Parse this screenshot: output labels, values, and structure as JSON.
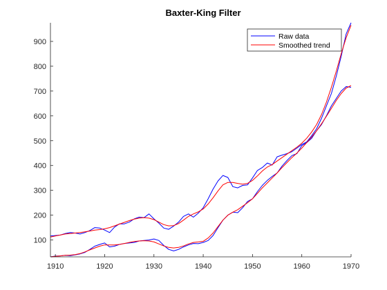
{
  "chart_data": {
    "type": "line",
    "title": "Baxter-King  Filter",
    "xlabel": "",
    "ylabel": "",
    "xlim": [
      1909,
      1970
    ],
    "ylim": [
      32,
      975
    ],
    "xticks": [
      1910,
      1920,
      1930,
      1940,
      1950,
      1960,
      1970
    ],
    "yticks": [
      100,
      200,
      300,
      400,
      500,
      600,
      700,
      800,
      900
    ],
    "grid": false,
    "legend_position": "top-right",
    "x": [
      1909,
      1910,
      1911,
      1912,
      1913,
      1914,
      1915,
      1916,
      1917,
      1918,
      1919,
      1920,
      1921,
      1922,
      1923,
      1924,
      1925,
      1926,
      1927,
      1928,
      1929,
      1930,
      1931,
      1932,
      1933,
      1934,
      1935,
      1936,
      1937,
      1938,
      1939,
      1940,
      1941,
      1942,
      1943,
      1944,
      1945,
      1946,
      1947,
      1948,
      1949,
      1950,
      1951,
      1952,
      1953,
      1954,
      1955,
      1956,
      1957,
      1958,
      1959,
      1960,
      1961,
      1962,
      1963,
      1964,
      1965,
      1966,
      1967,
      1968,
      1969,
      1970
    ],
    "series": [
      {
        "name": "Raw data",
        "color": "#0000ff",
        "values": [
          116,
          118,
          120,
          126,
          130,
          128,
          124,
          130,
          138,
          150,
          148,
          140,
          130,
          152,
          165,
          165,
          172,
          185,
          192,
          190,
          205,
          185,
          168,
          148,
          143,
          156,
          172,
          195,
          205,
          192,
          208,
          230,
          266,
          305,
          338,
          360,
          352,
          315,
          310,
          320,
          322,
          350,
          380,
          392,
          410,
          402,
          435,
          442,
          448,
          456,
          470,
          485,
          495,
          520,
          548,
          590,
          640,
          690,
          760,
          840,
          930,
          975
        ]
      },
      {
        "name": "Raw data",
        "color": "#0000ff",
        "values": [
          32,
          35,
          36,
          38,
          37,
          40,
          44,
          50,
          62,
          75,
          82,
          88,
          72,
          75,
          82,
          86,
          88,
          90,
          96,
          98,
          100,
          104,
          98,
          78,
          62,
          56,
          62,
          72,
          80,
          86,
          85,
          90,
          98,
          118,
          150,
          180,
          200,
          212,
          210,
          230,
          255,
          266,
          295,
          320,
          340,
          356,
          370,
          398,
          420,
          440,
          448,
          480,
          492,
          510,
          540,
          565,
          600,
          640,
          670,
          700,
          718,
          715
        ]
      },
      {
        "name": "Smoothed trend",
        "color": "#ff0000",
        "values": [
          112,
          116,
          120,
          124,
          126,
          128,
          130,
          133,
          136,
          140,
          142,
          145,
          150,
          157,
          164,
          171,
          178,
          184,
          188,
          190,
          188,
          182,
          172,
          162,
          157,
          158,
          166,
          180,
          195,
          205,
          213,
          225,
          245,
          270,
          298,
          322,
          332,
          332,
          328,
          325,
          328,
          340,
          358,
          378,
          394,
          404,
          418,
          432,
          446,
          460,
          474,
          490,
          510,
          535,
          565,
          605,
          655,
          715,
          780,
          850,
          915,
          965
        ]
      },
      {
        "name": "Smoothed trend",
        "color": "#ff0000",
        "values": [
          32,
          34,
          36,
          38,
          39,
          41,
          45,
          52,
          60,
          68,
          75,
          80,
          80,
          80,
          82,
          86,
          90,
          94,
          96,
          97,
          96,
          92,
          84,
          76,
          70,
          68,
          70,
          76,
          84,
          90,
          92,
          95,
          108,
          128,
          154,
          180,
          200,
          212,
          222,
          236,
          250,
          266,
          288,
          310,
          330,
          350,
          370,
          392,
          412,
          432,
          450,
          470,
          492,
          515,
          540,
          568,
          598,
          630,
          662,
          690,
          712,
          722
        ]
      }
    ]
  },
  "legend": [
    {
      "label": "Raw data",
      "color": "#0000ff"
    },
    {
      "label": "Smoothed trend",
      "color": "#ff0000"
    }
  ]
}
